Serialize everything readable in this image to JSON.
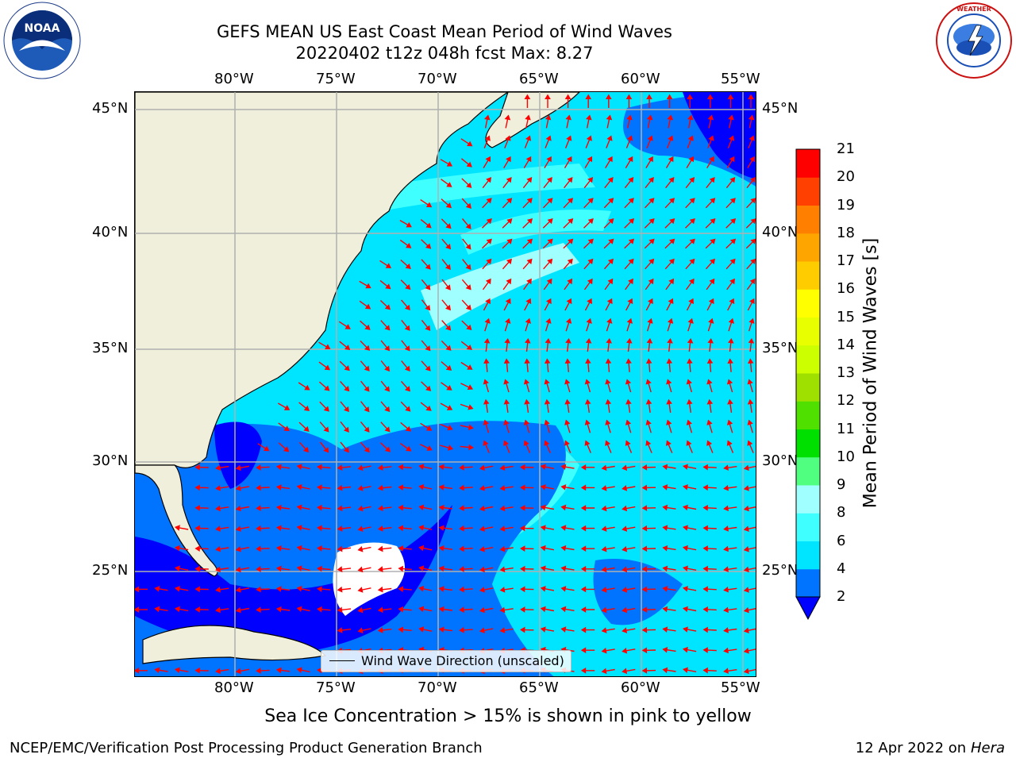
{
  "title": {
    "line1": "GEFS MEAN US East Coast Mean Period of Wind Waves",
    "line2": "20220402 t12z 048h fcst   Max: 8.27"
  },
  "map": {
    "lon_range": [
      -85,
      -54.5
    ],
    "lat_range": [
      20.5,
      45.8
    ],
    "lon_ticks": [
      "80°W",
      "75°W",
      "70°W",
      "65°W",
      "60°W",
      "55°W"
    ],
    "lat_ticks": [
      "45°N",
      "40°N",
      "35°N",
      "30°N",
      "25°N"
    ],
    "gridlines": true,
    "colors": {
      "land": "#efefdc",
      "coast": "#000000",
      "arrows": "#ff0000",
      "grid": "#b0b0b0"
    }
  },
  "legend": {
    "label": "Wind Wave Direction (unscaled)",
    "placement": "bottom-center"
  },
  "colorbar": {
    "label": "Mean Period of Wind Waves [s]",
    "ticks": [
      "2",
      "4",
      "6",
      "8",
      "9",
      "10",
      "11",
      "12",
      "13",
      "14",
      "15",
      "16",
      "17",
      "18",
      "19",
      "20",
      "21"
    ],
    "colors": [
      "#0000ff",
      "#0073ff",
      "#00e5ff",
      "#40ffff",
      "#a0ffff",
      "#50ff80",
      "#00e000",
      "#50e000",
      "#a0e000",
      "#ccff00",
      "#e8ff00",
      "#ffff00",
      "#ffcc00",
      "#ffa500",
      "#ff7f00",
      "#ff4000",
      "#ff0000"
    ],
    "extend": "min"
  },
  "caption": "Sea Ice Concentration > 15% is shown in pink to yellow",
  "footer": {
    "left": "NCEP/EMC/Verification Post Processing Product Generation Branch",
    "date": "12 Apr 2022 on",
    "host": "Hera"
  },
  "logos": {
    "left": "NOAA",
    "right": "NATIONAL WEATHER SERVICE"
  }
}
